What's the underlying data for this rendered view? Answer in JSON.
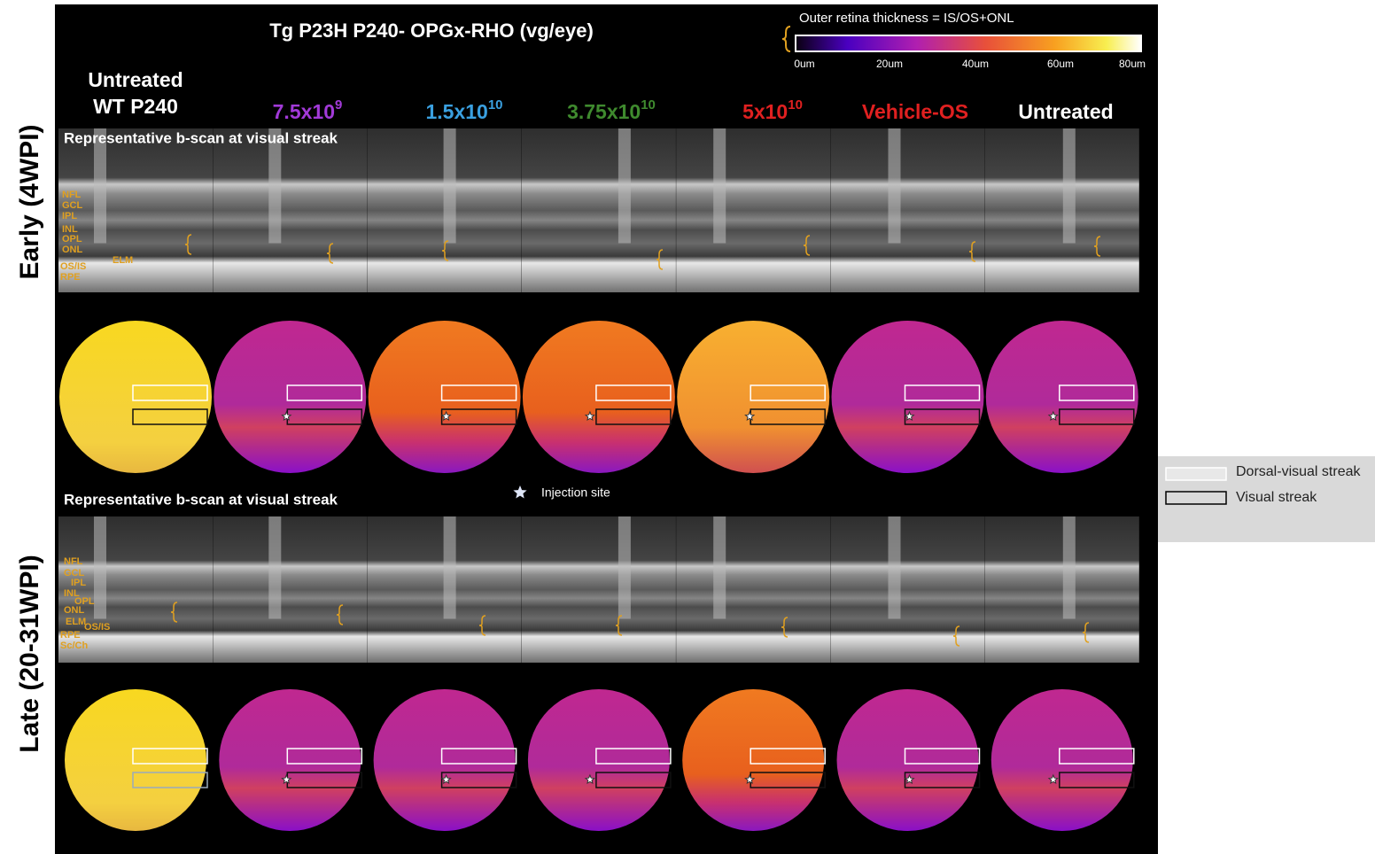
{
  "title": "Tg P23H P240- OPGx-RHO (vg/eye)",
  "colorbar": {
    "label": "Outer retina thickness = IS/OS+ONL",
    "ticks": [
      "0um",
      "20um",
      "40um",
      "60um",
      "80um"
    ]
  },
  "columns": [
    {
      "lines": [
        "Untreated",
        "WT P240"
      ],
      "color": "#ffffff"
    },
    {
      "text": "7.5x10",
      "sup": "9",
      "color": "#a23ad8"
    },
    {
      "text": "1.5x10",
      "sup": "10",
      "color": "#3aa0e0"
    },
    {
      "text": "3.75x10",
      "sup": "10",
      "color": "#3f8a2e"
    },
    {
      "text": "5x10",
      "sup": "10",
      "color": "#e02020"
    },
    {
      "text": "Vehicle-OS",
      "color": "#e02020"
    },
    {
      "text": "Untreated",
      "color": "#ffffff"
    }
  ],
  "rows": [
    {
      "label": "Early (4WPI)",
      "bscan_caption": "Representative b-scan at visual streak",
      "layers": [
        "NFL",
        "GCL",
        "IPL",
        "INL",
        "OPL",
        "ONL",
        "ELM",
        "OS/IS",
        "RPE"
      ]
    },
    {
      "label": "Late (20-31WPI)",
      "bscan_caption": "Representative b-scan at visual streak",
      "layers": [
        "NFL",
        "GCL",
        "IPL",
        "INL",
        "OPL",
        "ONL",
        "ELM",
        "OS/IS",
        "RPE",
        "Sc/Ch"
      ]
    }
  ],
  "injection_site": "Injection site",
  "legend": [
    "Dorsal-visual streak",
    "Visual streak"
  ]
}
